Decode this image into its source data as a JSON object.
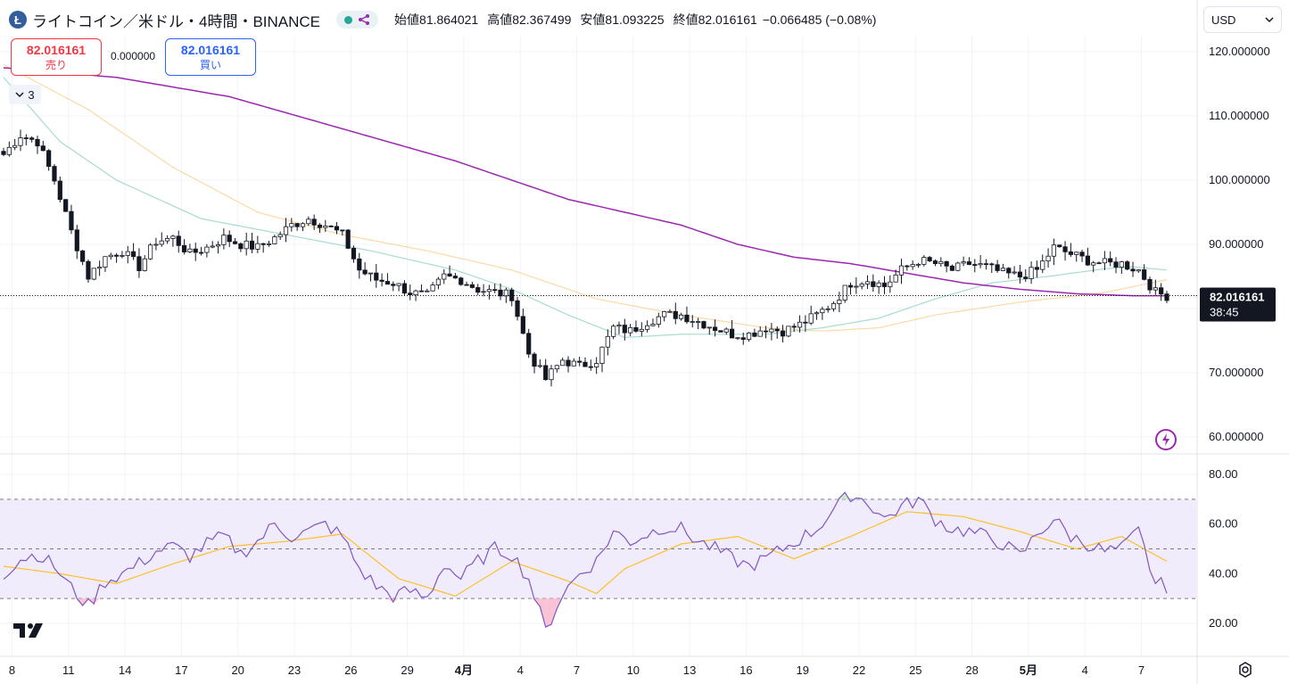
{
  "header": {
    "coin_icon_glyph": "Ł",
    "title": "ライトコイン／米ドル・4時間・BINANCE",
    "ohlc": [
      {
        "label": "始値",
        "value": "81.864021"
      },
      {
        "label": "高値",
        "value": "82.367499"
      },
      {
        "label": "安値",
        "value": "81.093225"
      },
      {
        "label": "終値",
        "value": "82.016161"
      }
    ],
    "change": "−0.066485 (−0.08%)"
  },
  "trade": {
    "sell_price": "82.016161",
    "sell_label": "売り",
    "buy_price": "82.016161",
    "buy_label": "買い",
    "spread": "0.000000"
  },
  "indicator_toggle": {
    "count": "3"
  },
  "currency": {
    "selected": "USD"
  },
  "price_label": {
    "price": "82.016161",
    "countdown": "38:45"
  },
  "colors": {
    "up": "#131722",
    "down": "#131722",
    "ma_short": "#a8dccf",
    "ma_mid": "#fcd9a6",
    "ma_long": "#9c27b0",
    "rsi": "#7e57c2",
    "rsi_ma": "#fbc02d",
    "rsi_band": "#f1ecfb",
    "sell": "#f23645",
    "buy": "#2962ff"
  },
  "chart_data": [
    {
      "type": "candlestick",
      "title": "ライトコイン／米ドル・4時間・BINANCE",
      "x_ticks": [
        "8",
        "11",
        "14",
        "17",
        "20",
        "23",
        "26",
        "29",
        "4月",
        "4",
        "7",
        "10",
        "13",
        "16",
        "19",
        "22",
        "25",
        "28",
        "5月",
        "4",
        "7"
      ],
      "y_ticks": [
        "120.000000",
        "110.000000",
        "100.000000",
        "90.000000",
        "80.000000",
        "70.000000",
        "60.000000"
      ],
      "ylim": [
        58,
        124
      ],
      "last_price": 82.016161,
      "keypoints": [
        [
          0,
          104
        ],
        [
          3,
          107
        ],
        [
          6,
          106
        ],
        [
          9,
          100
        ],
        [
          12,
          92
        ],
        [
          15,
          85
        ],
        [
          18,
          88
        ],
        [
          21,
          89
        ],
        [
          24,
          86.5
        ],
        [
          27,
          90.5
        ],
        [
          30,
          91
        ],
        [
          33,
          88.5
        ],
        [
          36,
          89.5
        ],
        [
          39,
          91
        ],
        [
          42,
          90
        ],
        [
          45,
          89.5
        ],
        [
          48,
          91
        ],
        [
          51,
          93
        ],
        [
          54,
          94
        ],
        [
          57,
          93
        ],
        [
          60,
          91.5
        ],
        [
          63,
          86
        ],
        [
          66,
          84.5
        ],
        [
          69,
          84
        ],
        [
          72,
          82.5
        ],
        [
          75,
          82
        ],
        [
          78,
          85
        ],
        [
          81,
          84.5
        ],
        [
          84,
          83
        ],
        [
          87,
          82.5
        ],
        [
          90,
          82
        ],
        [
          93,
          73
        ],
        [
          96,
          69
        ],
        [
          99,
          72
        ],
        [
          102,
          71
        ],
        [
          105,
          72
        ],
        [
          108,
          77
        ],
        [
          111,
          76.5
        ],
        [
          114,
          78
        ],
        [
          117,
          79
        ],
        [
          120,
          79
        ],
        [
          123,
          78
        ],
        [
          126,
          77
        ],
        [
          129,
          76
        ],
        [
          132,
          76
        ],
        [
          135,
          77
        ],
        [
          138,
          76.5
        ],
        [
          141,
          77.5
        ],
        [
          144,
          79
        ],
        [
          147,
          81
        ],
        [
          150,
          84
        ],
        [
          153,
          84.5
        ],
        [
          156,
          83.5
        ],
        [
          159,
          86
        ],
        [
          162,
          87.5
        ],
        [
          165,
          87
        ],
        [
          168,
          86
        ],
        [
          171,
          87
        ],
        [
          174,
          86.5
        ],
        [
          177,
          85.5
        ],
        [
          180,
          85
        ],
        [
          183,
          86
        ],
        [
          186,
          89.5
        ],
        [
          189,
          88.5
        ],
        [
          192,
          87.5
        ],
        [
          195,
          87
        ],
        [
          198,
          87
        ],
        [
          201,
          86
        ],
        [
          204,
          82.5
        ],
        [
          206,
          82
        ]
      ],
      "ma_short_keypoints": [
        [
          0,
          116
        ],
        [
          10,
          106
        ],
        [
          20,
          100
        ],
        [
          35,
          94
        ],
        [
          50,
          91.5
        ],
        [
          65,
          89
        ],
        [
          80,
          86
        ],
        [
          90,
          83
        ],
        [
          100,
          79
        ],
        [
          110,
          75.5
        ],
        [
          120,
          76
        ],
        [
          135,
          76
        ],
        [
          145,
          77
        ],
        [
          155,
          78.5
        ],
        [
          165,
          81.5
        ],
        [
          175,
          84
        ],
        [
          185,
          85
        ],
        [
          195,
          86.2
        ],
        [
          200,
          86.5
        ],
        [
          206,
          86
        ]
      ],
      "ma_mid_keypoints": [
        [
          0,
          118
        ],
        [
          15,
          111
        ],
        [
          30,
          102
        ],
        [
          45,
          95
        ],
        [
          60,
          91.5
        ],
        [
          75,
          89
        ],
        [
          90,
          86
        ],
        [
          105,
          81.5
        ],
        [
          120,
          79
        ],
        [
          135,
          77
        ],
        [
          145,
          76.5
        ],
        [
          155,
          77
        ],
        [
          165,
          79
        ],
        [
          180,
          81
        ],
        [
          195,
          82.5
        ],
        [
          206,
          84.5
        ]
      ],
      "ma_long_keypoints": [
        [
          0,
          117.5
        ],
        [
          20,
          116
        ],
        [
          40,
          113
        ],
        [
          60,
          108
        ],
        [
          80,
          103
        ],
        [
          100,
          97
        ],
        [
          120,
          93
        ],
        [
          130,
          90
        ],
        [
          140,
          88
        ],
        [
          150,
          87
        ],
        [
          160,
          85.5
        ],
        [
          170,
          84
        ],
        [
          180,
          83
        ],
        [
          190,
          82.3
        ],
        [
          200,
          82
        ],
        [
          206,
          82
        ]
      ]
    },
    {
      "type": "line",
      "title": "RSI",
      "y_ticks": [
        "80.00",
        "60.00",
        "40.00",
        "20.00"
      ],
      "ylim": [
        13,
        85
      ],
      "bands": [
        30,
        50,
        70
      ],
      "rsi_keypoints": [
        [
          0,
          40
        ],
        [
          3,
          46
        ],
        [
          6,
          48
        ],
        [
          9,
          43
        ],
        [
          12,
          34
        ],
        [
          15,
          27
        ],
        [
          18,
          37
        ],
        [
          21,
          40
        ],
        [
          24,
          44
        ],
        [
          27,
          49
        ],
        [
          30,
          51
        ],
        [
          33,
          47
        ],
        [
          36,
          52
        ],
        [
          39,
          55
        ],
        [
          42,
          48
        ],
        [
          45,
          53
        ],
        [
          48,
          60
        ],
        [
          51,
          55
        ],
        [
          54,
          57
        ],
        [
          57,
          60
        ],
        [
          60,
          55
        ],
        [
          63,
          42
        ],
        [
          66,
          35
        ],
        [
          69,
          31
        ],
        [
          72,
          33
        ],
        [
          75,
          30
        ],
        [
          78,
          44
        ],
        [
          81,
          38
        ],
        [
          84,
          45
        ],
        [
          87,
          50
        ],
        [
          90,
          48
        ],
        [
          93,
          38
        ],
        [
          96,
          17
        ],
        [
          99,
          32
        ],
        [
          102,
          40
        ],
        [
          105,
          45
        ],
        [
          108,
          57
        ],
        [
          111,
          53
        ],
        [
          114,
          56
        ],
        [
          117,
          59
        ],
        [
          120,
          58
        ],
        [
          123,
          53
        ],
        [
          126,
          50
        ],
        [
          129,
          46
        ],
        [
          132,
          43
        ],
        [
          135,
          46
        ],
        [
          138,
          50
        ],
        [
          141,
          54
        ],
        [
          144,
          58
        ],
        [
          147,
          66
        ],
        [
          150,
          72
        ],
        [
          153,
          69
        ],
        [
          156,
          62
        ],
        [
          159,
          67
        ],
        [
          162,
          70
        ],
        [
          165,
          62
        ],
        [
          168,
          58
        ],
        [
          171,
          57
        ],
        [
          174,
          55
        ],
        [
          177,
          52
        ],
        [
          180,
          47
        ],
        [
          183,
          56
        ],
        [
          186,
          62
        ],
        [
          189,
          55
        ],
        [
          192,
          52
        ],
        [
          195,
          49
        ],
        [
          198,
          50
        ],
        [
          201,
          57
        ],
        [
          204,
          36
        ],
        [
          206,
          35
        ]
      ],
      "rsi_ma_keypoints": [
        [
          0,
          43
        ],
        [
          10,
          40
        ],
        [
          20,
          36
        ],
        [
          30,
          44
        ],
        [
          40,
          51
        ],
        [
          50,
          53
        ],
        [
          60,
          56
        ],
        [
          70,
          38
        ],
        [
          80,
          31
        ],
        [
          90,
          45
        ],
        [
          100,
          37
        ],
        [
          105,
          32
        ],
        [
          110,
          42
        ],
        [
          120,
          52
        ],
        [
          130,
          55
        ],
        [
          140,
          46
        ],
        [
          150,
          55
        ],
        [
          160,
          65
        ],
        [
          170,
          63
        ],
        [
          180,
          57
        ],
        [
          190,
          50
        ],
        [
          198,
          55
        ],
        [
          206,
          45
        ]
      ]
    }
  ]
}
